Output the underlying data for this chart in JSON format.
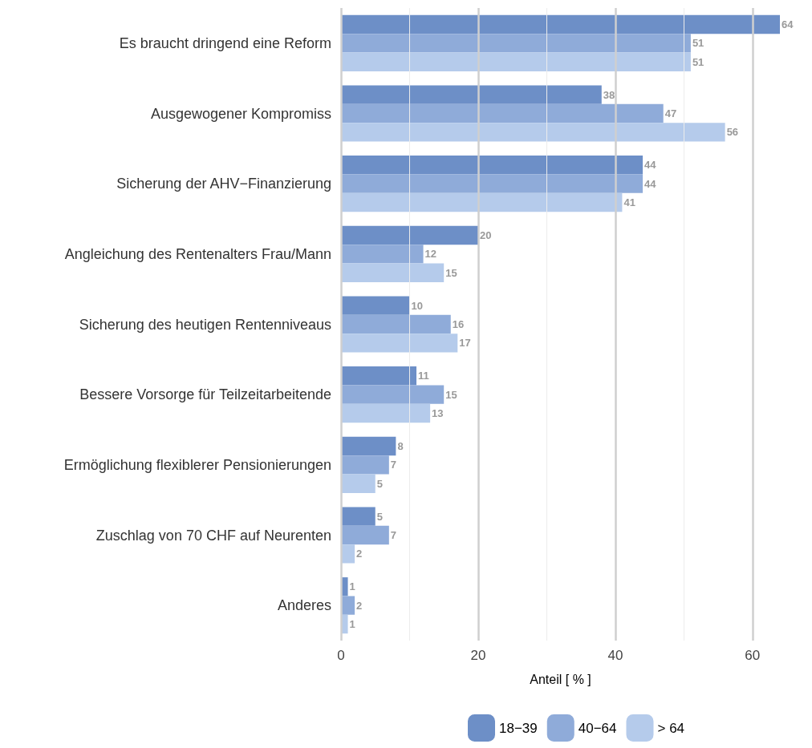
{
  "chart_data": {
    "type": "bar",
    "orientation": "horizontal",
    "xlabel": "Anteil [ % ]",
    "categories": [
      "Es braucht dringend eine Reform",
      "Ausgewogener Kompromiss",
      "Sicherung der AHV−Finanzierung",
      "Angleichung des Rentenalters Frau/Mann",
      "Sicherung des heutigen Rentenniveaus",
      "Bessere Vorsorge für Teilzeitarbeitende",
      "Ermöglichung flexiblerer Pensionierungen",
      "Zuschlag von 70 CHF auf Neurenten",
      "Anderes"
    ],
    "series": [
      {
        "name": "18−39",
        "color": "#6d8fc7",
        "values": [
          64,
          38,
          44,
          20,
          10,
          11,
          8,
          5,
          1
        ]
      },
      {
        "name": "40−64",
        "color": "#8fabd9",
        "values": [
          51,
          47,
          44,
          12,
          16,
          15,
          7,
          7,
          2
        ]
      },
      {
        "name": "> 64",
        "color": "#b5cbeb",
        "values": [
          51,
          56,
          41,
          15,
          17,
          13,
          5,
          2,
          1
        ]
      }
    ],
    "xlim": [
      0,
      64
    ],
    "xticks": [
      0,
      {
        "value": 10,
        "label": null
      },
      20,
      {
        "value": 30,
        "label": null
      },
      40,
      {
        "value": 50,
        "label": null
      },
      60
    ],
    "grid": "x",
    "legend": "bottom",
    "data_labels": true
  }
}
